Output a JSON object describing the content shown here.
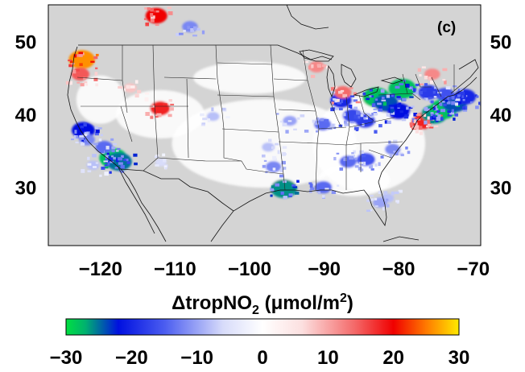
{
  "panel_label": "(c)",
  "map": {
    "lon_range": [
      -127,
      -69
    ],
    "lat_range": [
      22,
      55
    ],
    "background_color": "#d4d4d4",
    "land_color": "#d4d4d4",
    "lon_ticks": [
      "−120",
      "−110",
      "−100",
      "−90",
      "−80",
      "−70"
    ],
    "lon_tick_values": [
      -120,
      -110,
      -100,
      -90,
      -80,
      -70
    ],
    "lat_ticks": [
      "50",
      "40",
      "30"
    ],
    "lat_tick_values": [
      50,
      40,
      30
    ]
  },
  "colorbar": {
    "title_main": "ΔtropNO",
    "title_sub": "2",
    "title_unit": " (μmol/m",
    "title_sup": "2",
    "title_close": ")",
    "min": -30,
    "max": 30,
    "ticks": [
      "−30",
      "−20",
      "−10",
      "0",
      "10",
      "20",
      "30"
    ],
    "tick_values": [
      -30,
      -20,
      -10,
      0,
      10,
      20,
      30
    ],
    "stops": [
      {
        "v": -30,
        "color": "#00e040"
      },
      {
        "v": -27,
        "color": "#00b070"
      },
      {
        "v": -22,
        "color": "#0010e0"
      },
      {
        "v": -15,
        "color": "#4a5cf0"
      },
      {
        "v": -6,
        "color": "#d8dcfa"
      },
      {
        "v": 0,
        "color": "#ffffff"
      },
      {
        "v": 6,
        "color": "#fce0e0"
      },
      {
        "v": 14,
        "color": "#f46a6a"
      },
      {
        "v": 20,
        "color": "#f00000"
      },
      {
        "v": 25,
        "color": "#ff7a00"
      },
      {
        "v": 30,
        "color": "#ffea00"
      }
    ]
  },
  "chart_data": {
    "type": "heatmap",
    "title": "ΔtropNO2 (μmol/m2)",
    "xlabel": "",
    "ylabel": "",
    "xlim": [
      -127,
      -69
    ],
    "ylim": [
      22,
      55
    ],
    "value_range": [
      -30,
      30
    ],
    "notable_cells": [
      {
        "lon": -118.3,
        "lat": 34.0,
        "value": -28
      },
      {
        "lon": -117.5,
        "lat": 33.5,
        "value": -25
      },
      {
        "lon": -122.3,
        "lat": 37.8,
        "value": -22
      },
      {
        "lon": -121.8,
        "lat": 36.5,
        "value": -12
      },
      {
        "lon": -119.5,
        "lat": 35.5,
        "value": -14
      },
      {
        "lon": -121.0,
        "lat": 33.0,
        "value": -8
      },
      {
        "lon": -122.5,
        "lat": 47.5,
        "value": 26
      },
      {
        "lon": -122.7,
        "lat": 45.5,
        "value": 15
      },
      {
        "lon": -112.0,
        "lat": 40.8,
        "value": 18
      },
      {
        "lon": -116.0,
        "lat": 43.6,
        "value": 8
      },
      {
        "lon": -87.7,
        "lat": 41.9,
        "value": -20
      },
      {
        "lon": -87.5,
        "lat": 43.0,
        "value": 14
      },
      {
        "lon": -83.0,
        "lat": 42.3,
        "value": -28
      },
      {
        "lon": -81.7,
        "lat": 41.5,
        "value": -24
      },
      {
        "lon": -80.0,
        "lat": 40.4,
        "value": -22
      },
      {
        "lon": -79.5,
        "lat": 43.5,
        "value": -28
      },
      {
        "lon": -84.5,
        "lat": 39.1,
        "value": -18
      },
      {
        "lon": -86.2,
        "lat": 39.8,
        "value": -17
      },
      {
        "lon": -76.6,
        "lat": 39.3,
        "value": 16
      },
      {
        "lon": -77.0,
        "lat": 38.9,
        "value": 18
      },
      {
        "lon": -75.2,
        "lat": 40.0,
        "value": -26
      },
      {
        "lon": -74.0,
        "lat": 40.7,
        "value": -28
      },
      {
        "lon": -72.5,
        "lat": 41.5,
        "value": -24
      },
      {
        "lon": -71.1,
        "lat": 42.4,
        "value": -20
      },
      {
        "lon": -73.8,
        "lat": 42.7,
        "value": -16
      },
      {
        "lon": -95.4,
        "lat": 29.8,
        "value": -26
      },
      {
        "lon": -96.8,
        "lat": 32.8,
        "value": -12
      },
      {
        "lon": -90.1,
        "lat": 30.0,
        "value": -14
      },
      {
        "lon": -84.4,
        "lat": 33.8,
        "value": -16
      },
      {
        "lon": -90.2,
        "lat": 38.6,
        "value": -14
      },
      {
        "lon": -94.6,
        "lat": 39.1,
        "value": -10
      },
      {
        "lon": -104.9,
        "lat": 39.7,
        "value": -8
      },
      {
        "lon": -86.8,
        "lat": 33.5,
        "value": -14
      },
      {
        "lon": -80.8,
        "lat": 35.2,
        "value": -12
      },
      {
        "lon": -111.9,
        "lat": 33.4,
        "value": -6
      },
      {
        "lon": -97.5,
        "lat": 35.5,
        "value": -8
      },
      {
        "lon": -112.5,
        "lat": 53.5,
        "value": 20
      },
      {
        "lon": -108.0,
        "lat": 52.0,
        "value": -12
      },
      {
        "lon": -91.0,
        "lat": 46.5,
        "value": 12
      },
      {
        "lon": -75.5,
        "lat": 45.5,
        "value": 12
      },
      {
        "lon": -76.0,
        "lat": 43.0,
        "value": -18
      },
      {
        "lon": -81.5,
        "lat": 28.5,
        "value": -8
      },
      {
        "lon": -82.5,
        "lat": 27.9,
        "value": -10
      }
    ]
  }
}
